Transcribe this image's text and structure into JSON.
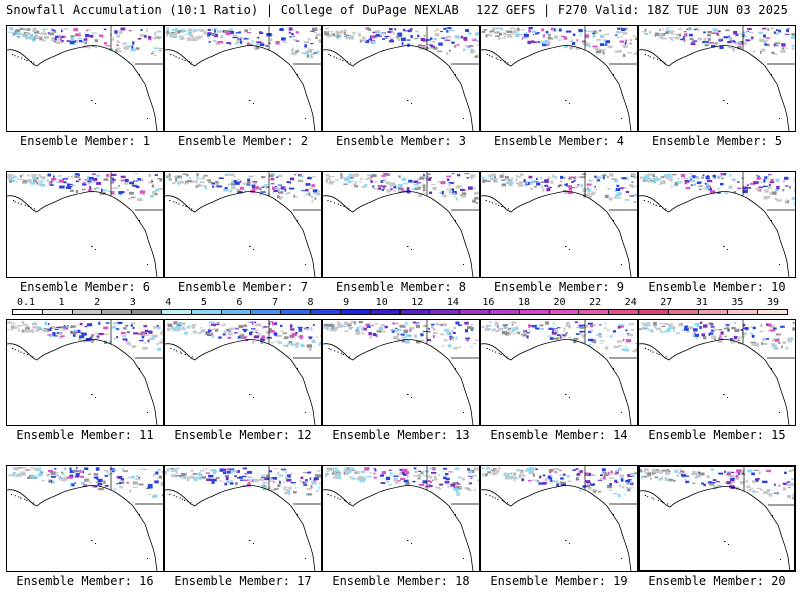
{
  "header": {
    "left_title": "Snowfall Accumulation (10:1 Ratio) | College of DuPage NEXLAB",
    "right_title": "12Z GEFS | F270 Valid: 18Z TUE JUN 03 2025"
  },
  "panels": [
    {
      "label": "Ensemble Member: 1"
    },
    {
      "label": "Ensemble Member: 2"
    },
    {
      "label": "Ensemble Member: 3"
    },
    {
      "label": "Ensemble Member: 4"
    },
    {
      "label": "Ensemble Member: 5"
    },
    {
      "label": "Ensemble Member: 6"
    },
    {
      "label": "Ensemble Member: 7"
    },
    {
      "label": "Ensemble Member: 8"
    },
    {
      "label": "Ensemble Member: 9"
    },
    {
      "label": "Ensemble Member: 10"
    },
    {
      "label": "Ensemble Member: 11"
    },
    {
      "label": "Ensemble Member: 12"
    },
    {
      "label": "Ensemble Member: 13"
    },
    {
      "label": "Ensemble Member: 14"
    },
    {
      "label": "Ensemble Member: 15"
    },
    {
      "label": "Ensemble Member: 16"
    },
    {
      "label": "Ensemble Member: 17"
    },
    {
      "label": "Ensemble Member: 18"
    },
    {
      "label": "Ensemble Member: 19"
    },
    {
      "label": "Ensemble Member: 20"
    }
  ],
  "colorbar": {
    "labels": [
      "0.1",
      "1",
      "2",
      "3",
      "4",
      "5",
      "6",
      "7",
      "8",
      "9",
      "10",
      "12",
      "14",
      "16",
      "18",
      "20",
      "22",
      "24",
      "27",
      "31",
      "35",
      "39"
    ],
    "colors": [
      "#ffffff",
      "#e8e8e8",
      "#c8c8c8",
      "#a8a8a8",
      "#8c8c8c",
      "#bfeffa",
      "#8fd8f2",
      "#69b8ee",
      "#4a93ea",
      "#3468e6",
      "#2643e0",
      "#1e22d8",
      "#3a1cc8",
      "#5a20c0",
      "#7a2cc0",
      "#9a36c0",
      "#b43ec4",
      "#cc48c8",
      "#dc52c0",
      "#e25aae",
      "#e0508c",
      "#d84478",
      "#e0708e",
      "#eca0b0",
      "#f4c6c8",
      "#fbe3d8"
    ]
  },
  "colors": {
    "snow_light": "#c8c8c8",
    "snow_mid": "#909090",
    "snow_blue": "#2643e0",
    "snow_cyan": "#8fd8f2",
    "snow_purple": "#7a2cc0",
    "snow_pink": "#dc52c0",
    "coastline": "#000000"
  }
}
